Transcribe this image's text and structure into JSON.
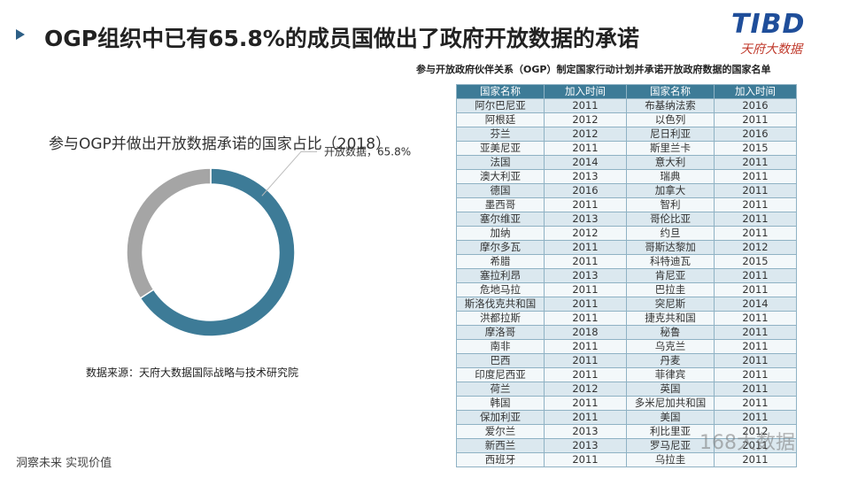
{
  "header": {
    "title": "OGP组织中已有65.8%的成员国做出了政府开放数据的承诺",
    "logo": "TIBD",
    "logo_sub": "天府大数据"
  },
  "chart_data": {
    "type": "pie",
    "donut": true,
    "title": "参与OGP并做出开放数据承诺的国家占比（2018）",
    "values": [
      65.8,
      34.2
    ],
    "value_labels": [
      "开放数据，65.8%",
      null
    ],
    "colors": [
      "#3d7b97",
      "#a5a5a5"
    ]
  },
  "source": "数据来源：天府大数据国际战略与技术研究院",
  "table": {
    "caption": "参与开放政府伙伴关系（OGP）制定国家行动计划并承诺开放政府数据的国家名单",
    "header": [
      "国家名称",
      "加入时间",
      "国家名称",
      "加入时间"
    ],
    "rows": [
      [
        "阿尔巴尼亚",
        2011,
        "布基纳法索",
        2016
      ],
      [
        "阿根廷",
        2012,
        "以色列",
        2011
      ],
      [
        "芬兰",
        2012,
        "尼日利亚",
        2016
      ],
      [
        "亚美尼亚",
        2011,
        "斯里兰卡",
        2015
      ],
      [
        "法国",
        2014,
        "意大利",
        2011
      ],
      [
        "澳大利亚",
        2013,
        "瑞典",
        2011
      ],
      [
        "德国",
        2016,
        "加拿大",
        2011
      ],
      [
        "墨西哥",
        2011,
        "智利",
        2011
      ],
      [
        "塞尔维亚",
        2013,
        "哥伦比亚",
        2011
      ],
      [
        "加纳",
        2012,
        "约旦",
        2011
      ],
      [
        "摩尔多瓦",
        2011,
        "哥斯达黎加",
        2012
      ],
      [
        "希腊",
        2011,
        "科特迪瓦",
        2015
      ],
      [
        "塞拉利昂",
        2013,
        "肯尼亚",
        2011
      ],
      [
        "危地马拉",
        2011,
        "巴拉圭",
        2011
      ],
      [
        "斯洛伐克共和国",
        2011,
        "突尼斯",
        2014
      ],
      [
        "洪都拉斯",
        2011,
        "捷克共和国",
        2011
      ],
      [
        "摩洛哥",
        2018,
        "秘鲁",
        2011
      ],
      [
        "南非",
        2011,
        "乌克兰",
        2011
      ],
      [
        "巴西",
        2011,
        "丹麦",
        2011
      ],
      [
        "印度尼西亚",
        2011,
        "菲律宾",
        2011
      ],
      [
        "荷兰",
        2012,
        "英国",
        2011
      ],
      [
        "韩国",
        2011,
        "多米尼加共和国",
        2011
      ],
      [
        "保加利亚",
        2011,
        "美国",
        2011
      ],
      [
        "爱尔兰",
        2013,
        "利比里亚",
        2012
      ],
      [
        "新西兰",
        2013,
        "罗马尼亚",
        2011
      ],
      [
        "西班牙",
        2011,
        "乌拉圭",
        2011
      ]
    ]
  },
  "footer": "洞察未来 实现价值",
  "watermark": "168大数据"
}
